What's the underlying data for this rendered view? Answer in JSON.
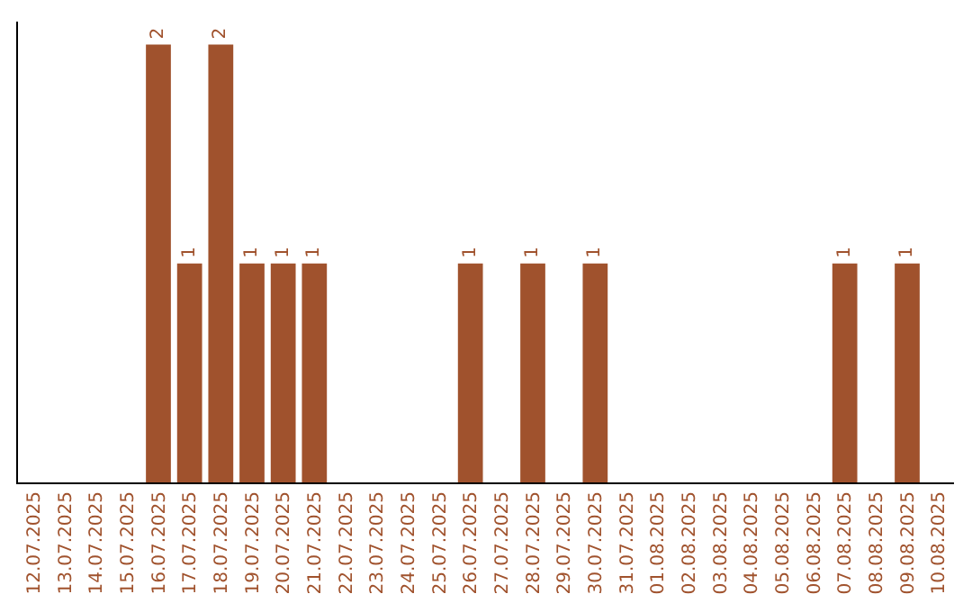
{
  "chart_data": {
    "type": "bar",
    "categories": [
      "12.07.2025",
      "13.07.2025",
      "14.07.2025",
      "15.07.2025",
      "16.07.2025",
      "17.07.2025",
      "18.07.2025",
      "19.07.2025",
      "20.07.2025",
      "21.07.2025",
      "22.07.2025",
      "23.07.2025",
      "24.07.2025",
      "25.07.2025",
      "26.07.2025",
      "27.07.2025",
      "28.07.2025",
      "29.07.2025",
      "30.07.2025",
      "31.07.2025",
      "01.08.2025",
      "02.08.2025",
      "03.08.2025",
      "04.08.2025",
      "05.08.2025",
      "06.08.2025",
      "07.08.2025",
      "08.08.2025",
      "09.08.2025",
      "10.08.2025"
    ],
    "values": [
      0,
      0,
      0,
      0,
      2,
      1,
      2,
      1,
      1,
      1,
      0,
      0,
      0,
      0,
      1,
      0,
      1,
      0,
      1,
      0,
      0,
      0,
      0,
      0,
      0,
      0,
      1,
      0,
      1,
      0
    ],
    "value_labels": [
      null,
      null,
      null,
      null,
      "2",
      "1",
      "2",
      "1",
      "1",
      "1",
      null,
      null,
      null,
      null,
      "1",
      null,
      "1",
      null,
      "1",
      null,
      null,
      null,
      null,
      null,
      null,
      null,
      "1",
      null,
      "1",
      null
    ],
    "color": "#a0522d",
    "tick_labels": "x"
  }
}
